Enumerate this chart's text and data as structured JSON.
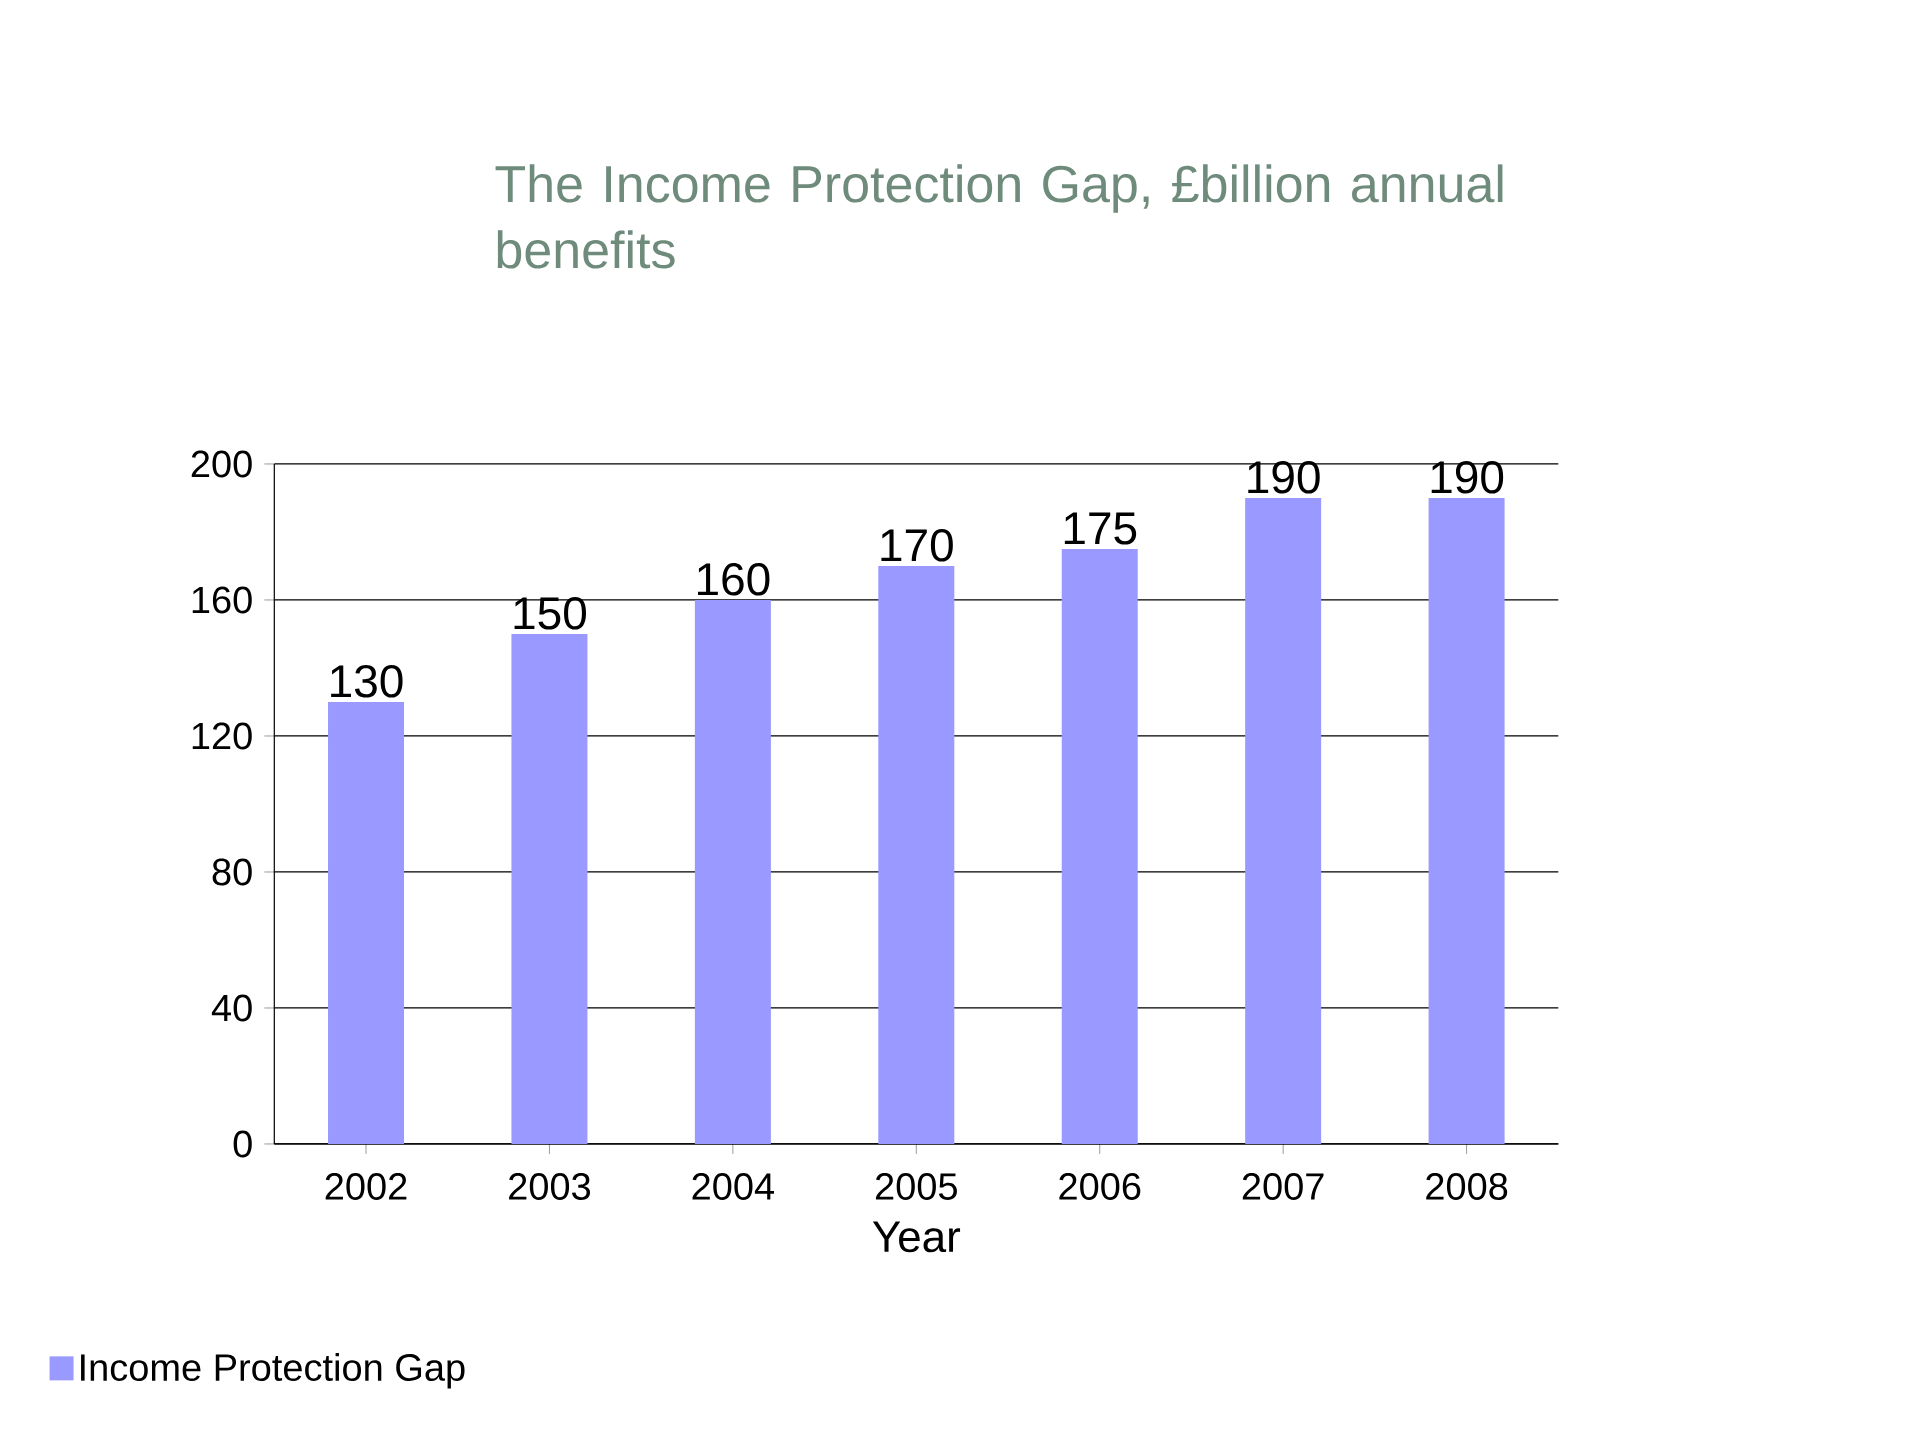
{
  "chart_data": {
    "type": "bar",
    "title": "The Income Protection Gap, £billion annual benefits",
    "xlabel": "Year",
    "categories": [
      "2002",
      "2003",
      "2004",
      "2005",
      "2006",
      "2007",
      "2008"
    ],
    "series": [
      {
        "name": "Income Protection Gap",
        "color": "#9999ff",
        "values": [
          130,
          150,
          160,
          170,
          175,
          190,
          190
        ]
      }
    ],
    "ylim": [
      0,
      200
    ],
    "yticks": [
      0,
      40,
      80,
      120,
      160,
      200
    ],
    "grid": "y",
    "legend": "bottom left",
    "data_labels": true
  }
}
